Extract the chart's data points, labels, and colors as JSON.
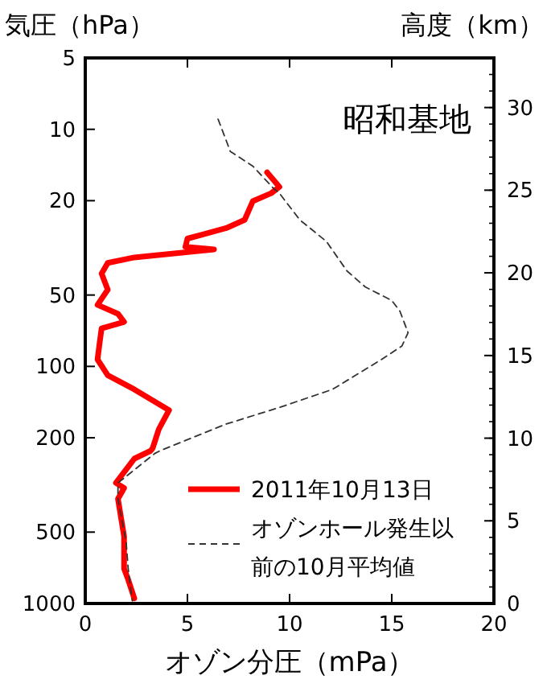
{
  "chart_data": {
    "type": "line",
    "title": "昭和基地",
    "xlabel": "オゾン分圧（mPa）",
    "ylabel": "気圧（hPa）",
    "y2label": "高度（km）",
    "xlim": [
      0,
      20
    ],
    "xticks": [
      0,
      5,
      10,
      15,
      20
    ],
    "ylim": [
      1000,
      5
    ],
    "yticks": [
      5,
      10,
      20,
      50,
      100,
      200,
      500,
      1000
    ],
    "log": "y",
    "y2lim": [
      0,
      33
    ],
    "y2ticks": [
      0,
      5,
      10,
      15,
      20,
      25,
      30
    ],
    "grid": false,
    "legend": "bottom right",
    "marker": "none",
    "series": [
      {
        "name": "2011年10月13日",
        "color": "#ff0000",
        "line_style": "solid",
        "x": [
          8.9,
          9.5,
          9.1,
          8.2,
          7.8,
          6.9,
          5.0,
          4.9,
          6.3,
          2.4,
          1.1,
          0.8,
          1.1,
          0.6,
          1.6,
          1.9,
          0.8,
          0.7,
          0.6,
          1.1,
          2.4,
          4.1,
          3.6,
          3.3,
          3.2,
          2.4,
          1.5,
          1.9,
          1.6,
          1.9,
          1.9,
          2.1,
          2.4
        ],
        "values": [
          15.2,
          17.5,
          18.6,
          20.1,
          24.1,
          26.1,
          28.9,
          31.3,
          32.1,
          34.7,
          36.6,
          40.6,
          47.5,
          55,
          60,
          64.9,
          69.1,
          80,
          93.5,
          109,
          125,
          153,
          184,
          221,
          227,
          245,
          310,
          326,
          362,
          521,
          713,
          793,
          951
        ]
      },
      {
        "name": "オゾンホール発生以前の10月平均値",
        "color": "#333333",
        "line_style": "dashed",
        "x": [
          6.5,
          7.1,
          8.2,
          9.2,
          9.5,
          10.5,
          11.8,
          12.8,
          13.7,
          15.0,
          15.4,
          15.8,
          15.5,
          14.5,
          12.1,
          9.5,
          6.9,
          3.7,
          3.4,
          1.6,
          1.6,
          2.0,
          2.1,
          2.3
        ],
        "values": [
          9.06,
          12.4,
          14.3,
          17.7,
          18.6,
          24.1,
          29.7,
          39.5,
          46.2,
          52.7,
          58.5,
          72.1,
          82,
          93.5,
          125,
          149,
          175,
          226,
          233,
          310,
          362,
          550,
          713,
          975
        ]
      }
    ]
  }
}
